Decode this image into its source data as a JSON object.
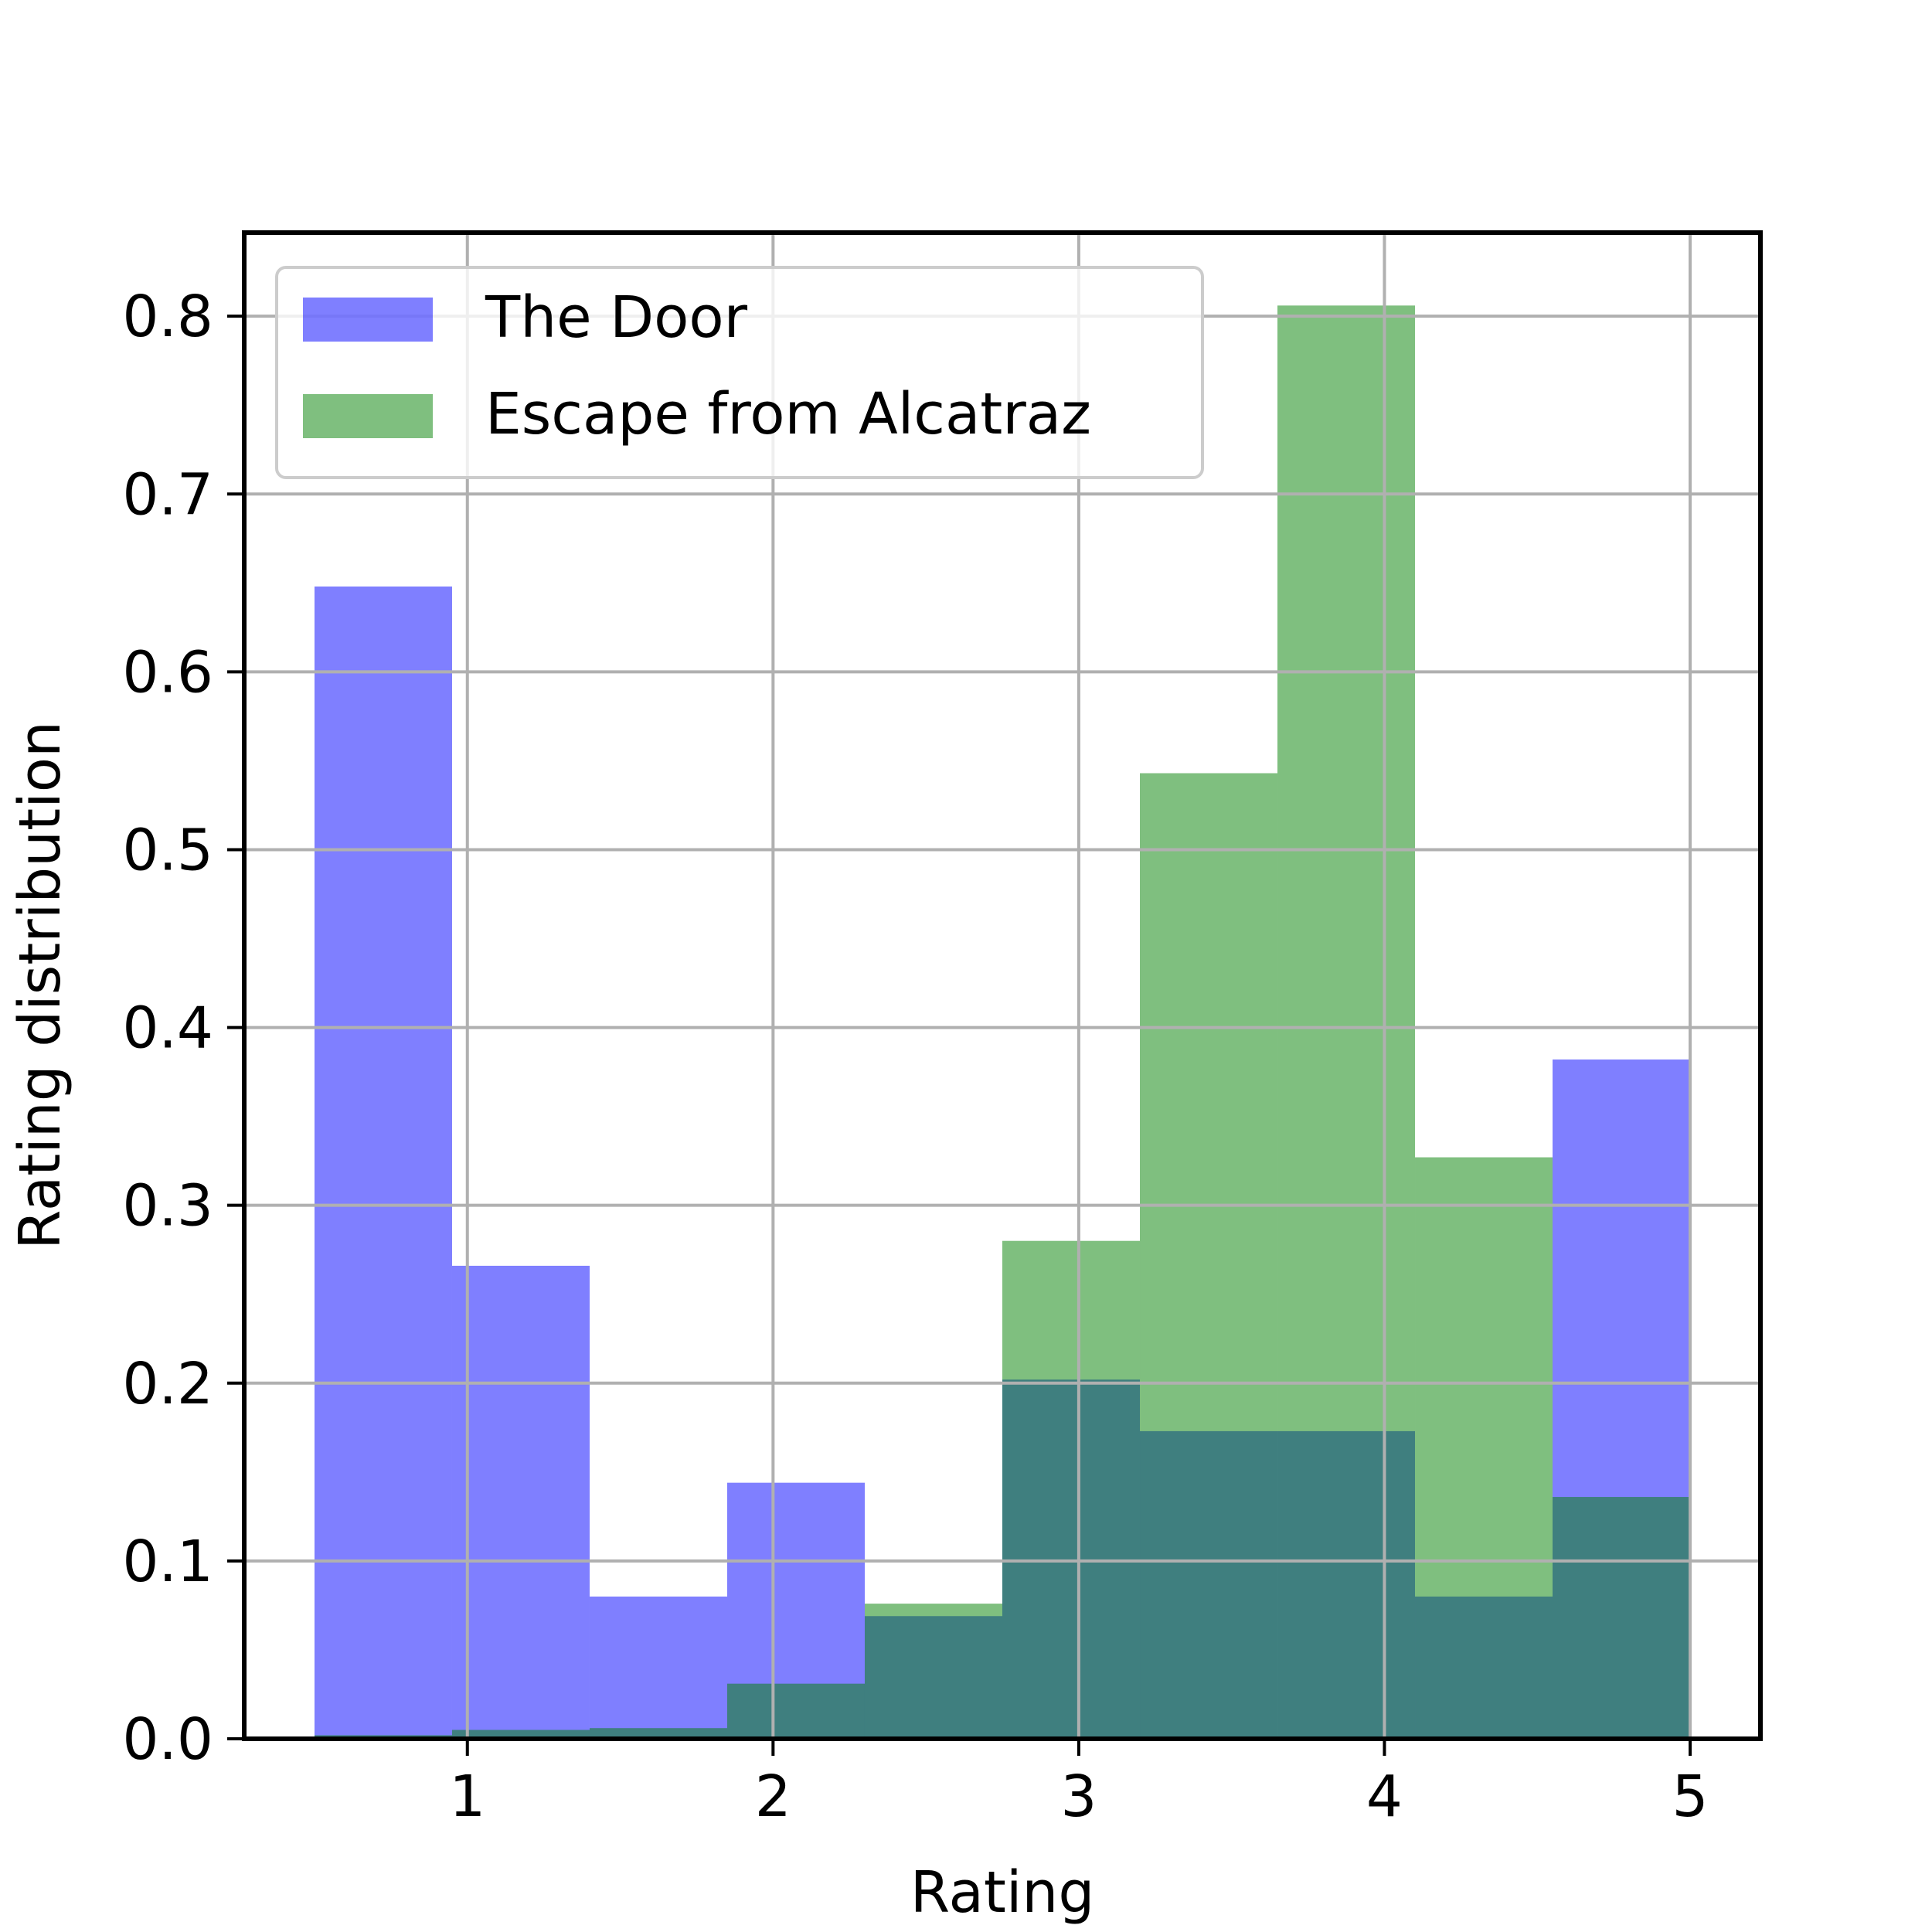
{
  "chart_data": {
    "type": "bar",
    "title": "",
    "xlabel": "Rating",
    "ylabel": "Rating distribution",
    "xlim": [
      0.27,
      5.23
    ],
    "ylim": [
      0,
      0.847
    ],
    "xticks": [
      "1",
      "2",
      "3",
      "4",
      "5"
    ],
    "yticks": [
      "0.0",
      "0.1",
      "0.2",
      "0.3",
      "0.4",
      "0.5",
      "0.6",
      "0.7",
      "0.8"
    ],
    "grid": true,
    "legend_position": "top-left",
    "bin_edges": [
      0.5,
      0.95,
      1.4,
      1.85,
      2.3,
      2.75,
      3.2,
      3.65,
      4.1,
      4.55,
      5.0
    ],
    "series": [
      {
        "name": "The Door",
        "color": "#0000ff",
        "opacity": 0.5,
        "values": [
          0.648,
          0.266,
          0.08,
          0.144,
          0.069,
          0.202,
          0.173,
          0.173,
          0.08,
          0.382
        ]
      },
      {
        "name": "Escape from Alcatraz",
        "color": "#008000",
        "opacity": 0.5,
        "values": [
          0.002,
          0.005,
          0.006,
          0.031,
          0.076,
          0.28,
          0.543,
          0.806,
          0.327,
          0.136
        ]
      }
    ]
  }
}
